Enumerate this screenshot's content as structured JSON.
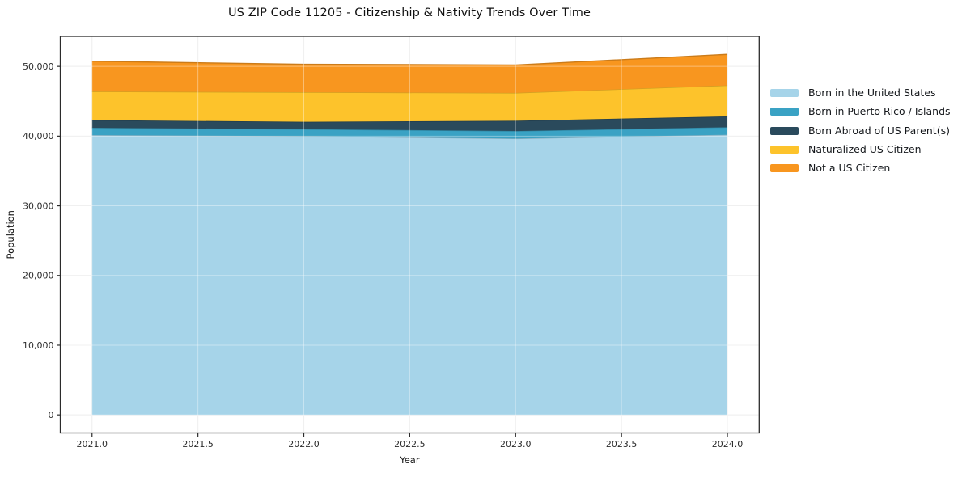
{
  "page": {
    "title": "US ZIP Code 11205 - Citizenship & Nativity Trends Over Time"
  },
  "chart_data": {
    "type": "area",
    "stacked": true,
    "title": "US ZIP Code 11205 - Citizenship & Nativity Trends Over Time",
    "xlabel": "Year",
    "ylabel": "Population",
    "x": [
      2021,
      2022,
      2023,
      2024
    ],
    "series": [
      {
        "name": "Born in the United States",
        "color": "#a6d4e9",
        "values": [
          40150,
          40000,
          39650,
          40200
        ]
      },
      {
        "name": "Born in Puerto Rico / Islands",
        "color": "#3aa2c4",
        "values": [
          1050,
          1000,
          1080,
          1080
        ]
      },
      {
        "name": "Born Abroad of US Parent(s)",
        "color": "#2a4a5c",
        "values": [
          1100,
          1050,
          1470,
          1550
        ]
      },
      {
        "name": "Naturalized US Citizen",
        "color": "#fdc32b",
        "values": [
          4100,
          4250,
          4000,
          4450
        ]
      },
      {
        "name": "Not a US Citizen",
        "color": "#f8961f",
        "values": [
          4350,
          4000,
          4000,
          4450
        ]
      }
    ],
    "stack_totals": [
      50750,
      50300,
      50200,
      51730
    ],
    "xticks": [
      2021.0,
      2021.5,
      2022.0,
      2022.5,
      2023.0,
      2023.5,
      2024.0
    ],
    "yticks": [
      0,
      10000,
      20000,
      30000,
      40000,
      50000
    ],
    "xlim": [
      2020.85,
      2024.15
    ],
    "ylim": [
      -2590,
      54310
    ],
    "grid": true,
    "legend_position": "right",
    "grid_color": "#e7e7e7",
    "spine_color": "#2b2b2b",
    "tick_label_color": "#2b2b2b"
  }
}
